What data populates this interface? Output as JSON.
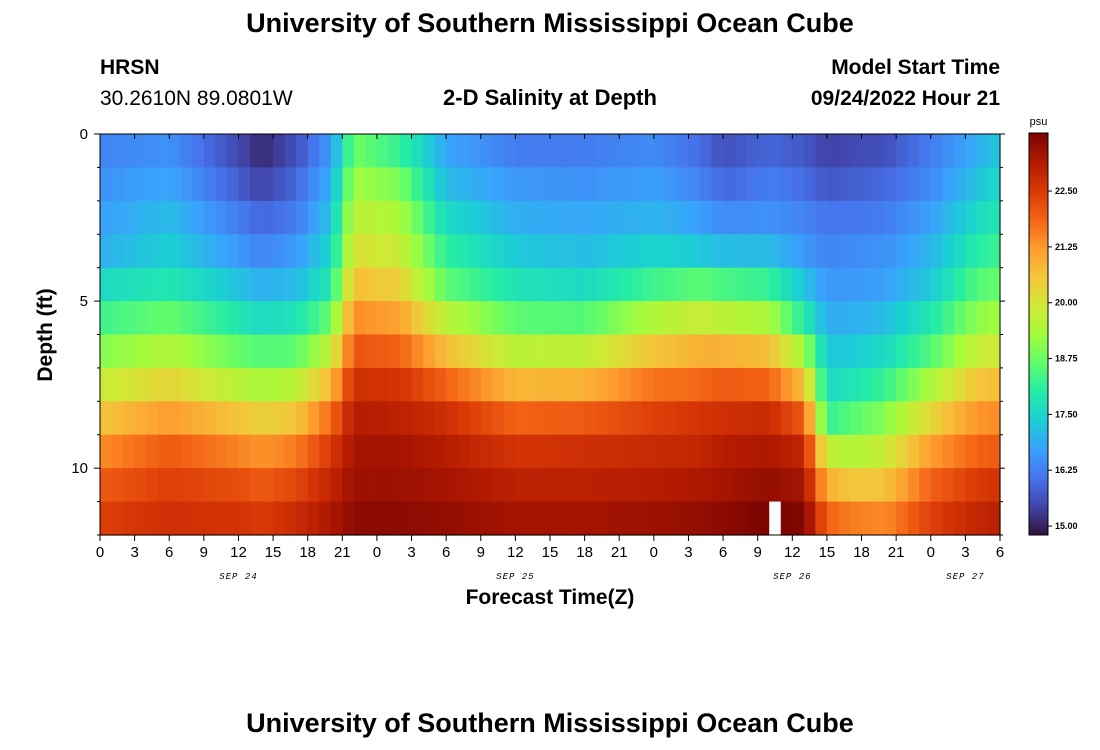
{
  "header": {
    "title_top": "University of Southern Mississippi Ocean Cube",
    "title_bottom": "University of Southern Mississippi Ocean Cube",
    "station": "HRSN",
    "coords": "30.2610N  89.0801W",
    "plot_title": "2-D Salinity at Depth",
    "model_start_label": "Model Start Time",
    "model_start_value": "09/24/2022 Hour 21"
  },
  "colors": {
    "background": "#ffffff",
    "colormap": [
      "#30123b",
      "#4145ab",
      "#4675ed",
      "#39a2fc",
      "#1bcfd4",
      "#24eca6",
      "#61fc6c",
      "#a4fc3b",
      "#d1e835",
      "#f3c63a",
      "#fe9b2d",
      "#f36315",
      "#d93806",
      "#b11901",
      "#7a0402"
    ]
  },
  "chart_data": {
    "type": "heatmap",
    "title": "2-D Salinity at Depth",
    "xlabel": "Forecast Time(Z)",
    "ylabel": "Depth (ft)",
    "x_tick_labels": [
      "0",
      "3",
      "6",
      "9",
      "12",
      "15",
      "18",
      "21",
      "0",
      "3",
      "6",
      "9",
      "12",
      "15",
      "18",
      "21",
      "0",
      "3",
      "6",
      "9",
      "12",
      "15",
      "18",
      "21",
      "0",
      "3",
      "6"
    ],
    "x_range_hours": [
      0,
      78
    ],
    "date_labels": [
      {
        "text": "SEP 24",
        "hour": 12
      },
      {
        "text": "SEP 25",
        "hour": 36
      },
      {
        "text": "SEP 26",
        "hour": 60
      },
      {
        "text": "SEP 27",
        "hour": 75
      }
    ],
    "y_tick_labels": [
      "0",
      "5",
      "10"
    ],
    "y_tick_values": [
      0,
      5,
      10
    ],
    "y_range_ft": [
      0,
      12
    ],
    "depth_levels": 12,
    "colorbar": {
      "unit": "psu",
      "min": 14.8,
      "max": 23.8,
      "ticks": [
        "15.00",
        "16.25",
        "17.50",
        "18.75",
        "20.00",
        "21.25",
        "22.50"
      ],
      "tick_values": [
        15.0,
        16.25,
        17.5,
        18.75,
        20.0,
        21.25,
        22.5
      ]
    },
    "missing_cells": [
      {
        "hour": 58,
        "depth_level": 11
      }
    ],
    "profile_hours": [
      0,
      6,
      12,
      14,
      17,
      20,
      22,
      26,
      30,
      36,
      42,
      48,
      52,
      54,
      58,
      61,
      63,
      65,
      68,
      72,
      76,
      78
    ],
    "profiles": [
      [
        16.3,
        16.5,
        16.7,
        16.9,
        17.6,
        18.3,
        19.0,
        19.8,
        20.6,
        21.4,
        22.0,
        22.4
      ],
      [
        16.5,
        16.8,
        17.1,
        17.4,
        17.9,
        18.7,
        19.5,
        20.3,
        21.2,
        22.0,
        22.4,
        22.7
      ],
      [
        15.5,
        15.8,
        16.2,
        16.6,
        17.2,
        17.9,
        18.7,
        19.6,
        20.6,
        21.5,
        22.2,
        22.6
      ],
      [
        15.1,
        15.4,
        15.9,
        16.3,
        16.9,
        17.6,
        18.5,
        19.4,
        20.4,
        21.3,
        22.0,
        22.5
      ],
      [
        15.6,
        15.9,
        16.2,
        16.6,
        17.1,
        17.8,
        18.6,
        19.6,
        20.6,
        21.6,
        22.3,
        22.8
      ],
      [
        16.6,
        16.9,
        17.2,
        17.5,
        17.9,
        18.7,
        19.7,
        20.8,
        21.8,
        22.5,
        22.9,
        23.2
      ],
      [
        18.8,
        19.3,
        19.7,
        20.1,
        20.7,
        21.4,
        22.1,
        22.7,
        23.1,
        23.3,
        23.4,
        23.6
      ],
      [
        18.2,
        18.9,
        19.4,
        19.8,
        20.4,
        21.1,
        21.9,
        22.6,
        23.0,
        23.3,
        23.4,
        23.6
      ],
      [
        16.8,
        17.1,
        17.6,
        18.1,
        18.6,
        19.6,
        20.7,
        21.9,
        22.7,
        23.1,
        23.3,
        23.5
      ],
      [
        16.2,
        16.6,
        16.9,
        17.3,
        17.8,
        18.6,
        19.6,
        20.8,
        21.9,
        22.6,
        23.0,
        23.3
      ],
      [
        16.2,
        16.5,
        16.8,
        17.1,
        17.6,
        18.5,
        19.7,
        20.9,
        22.0,
        22.7,
        23.0,
        23.3
      ],
      [
        16.4,
        16.7,
        17.0,
        17.5,
        18.3,
        19.5,
        20.6,
        21.7,
        22.4,
        22.8,
        23.1,
        23.4
      ],
      [
        16.0,
        16.3,
        16.7,
        17.3,
        18.6,
        19.8,
        20.9,
        21.8,
        22.6,
        22.9,
        23.2,
        23.5
      ],
      [
        15.6,
        15.9,
        16.4,
        17.1,
        18.4,
        19.6,
        20.9,
        22.0,
        22.7,
        23.1,
        23.3,
        23.6
      ],
      [
        15.9,
        16.2,
        16.5,
        17.1,
        18.2,
        19.4,
        20.7,
        21.9,
        22.8,
        23.2,
        23.5,
        23.8
      ],
      [
        15.7,
        16.0,
        16.3,
        16.6,
        17.2,
        18.0,
        19.3,
        20.7,
        22.0,
        22.9,
        23.3,
        23.7
      ],
      [
        15.4,
        15.7,
        16.1,
        16.3,
        16.6,
        16.9,
        17.3,
        17.6,
        18.2,
        19.7,
        20.9,
        21.9
      ],
      [
        15.5,
        15.8,
        16.1,
        16.4,
        16.6,
        16.9,
        17.3,
        17.8,
        18.5,
        19.5,
        20.6,
        21.6
      ],
      [
        15.6,
        15.9,
        16.2,
        16.5,
        16.7,
        17.1,
        17.6,
        18.2,
        19.0,
        19.8,
        20.6,
        21.4
      ],
      [
        16.2,
        16.4,
        16.7,
        17.0,
        17.3,
        17.9,
        18.5,
        19.4,
        20.3,
        21.2,
        21.9,
        22.4
      ],
      [
        16.9,
        17.2,
        17.6,
        18.0,
        18.5,
        19.1,
        19.8,
        20.6,
        21.3,
        21.9,
        22.5,
        22.9
      ],
      [
        17.3,
        17.6,
        17.9,
        18.3,
        18.7,
        19.3,
        19.9,
        20.7,
        21.4,
        22.0,
        22.6,
        23.0
      ]
    ]
  }
}
